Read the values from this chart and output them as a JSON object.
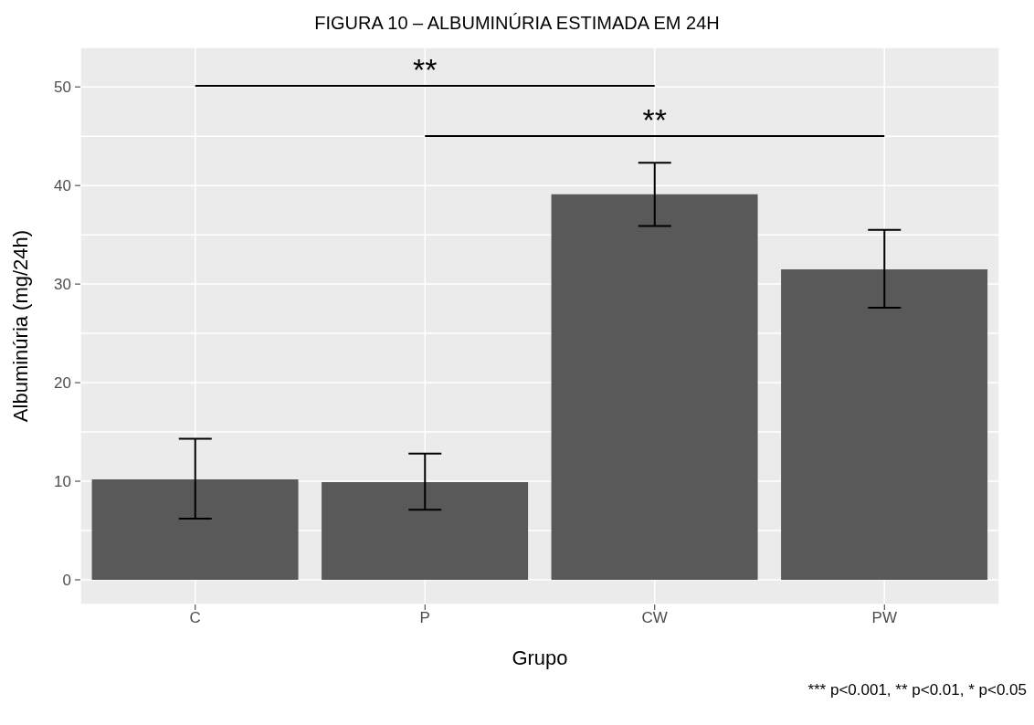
{
  "chart_data": {
    "type": "bar",
    "title": "FIGURA 10 – ALBUMINÚRIA ESTIMADA EM 24H",
    "xlabel": "Grupo",
    "ylabel": "Albuminúria (mg/24h)",
    "categories": [
      "C",
      "P",
      "CW",
      "PW"
    ],
    "values": [
      10.2,
      9.9,
      39.1,
      31.5
    ],
    "errors": [
      [
        6.2,
        14.3
      ],
      [
        7.1,
        12.8
      ],
      [
        35.9,
        42.3
      ],
      [
        27.6,
        35.5
      ]
    ],
    "color": "#595959",
    "ylim": [
      -2.5,
      54
    ],
    "yticks": [
      0,
      {
        "value": 5,
        "label": null
      },
      10,
      {
        "value": 15,
        "label": null
      },
      20,
      {
        "value": 25,
        "label": null
      },
      30,
      {
        "value": 35,
        "label": null
      },
      40,
      {
        "value": 45,
        "label": null
      },
      50
    ],
    "grid": true,
    "annotations": [
      "**",
      "**",
      "*** p<0.001, ** p<0.01, * p<0.05"
    ]
  }
}
